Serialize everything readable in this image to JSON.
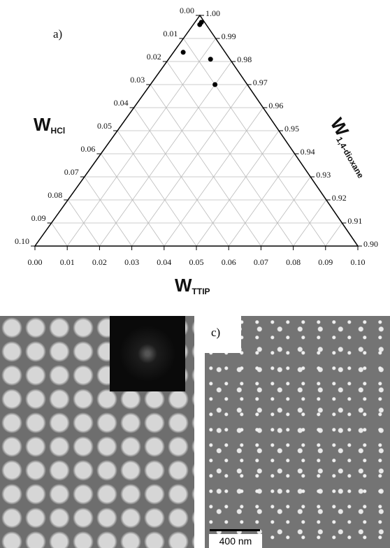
{
  "chart_data": {
    "type": "ternary",
    "panel_label": "a)",
    "axes": {
      "left": {
        "symbol": "W",
        "subscript": "HCl"
      },
      "bottom": {
        "symbol": "W",
        "subscript": "TTIP"
      },
      "right": {
        "symbol": "W",
        "subscript": "1,4-dioxane"
      }
    },
    "hcl_ticks": [
      {
        "value": 0,
        "label": "0.00"
      },
      {
        "value": 0.01,
        "label": "0.01"
      },
      {
        "value": 0.02,
        "label": "0.02"
      },
      {
        "value": 0.03,
        "label": "0.03"
      },
      {
        "value": 0.04,
        "label": "0.04"
      },
      {
        "value": 0.05,
        "label": "0.05"
      },
      {
        "value": 0.06,
        "label": "0.06"
      },
      {
        "value": 0.07,
        "label": "0.07"
      },
      {
        "value": 0.08,
        "label": "0.08"
      },
      {
        "value": 0.09,
        "label": "0.09"
      },
      {
        "value": 0.1,
        "label": "0.10"
      }
    ],
    "ttip_ticks": [
      {
        "value": 0,
        "label": "0.00"
      },
      {
        "value": 0.01,
        "label": "0.01"
      },
      {
        "value": 0.02,
        "label": "0.02"
      },
      {
        "value": 0.03,
        "label": "0.03"
      },
      {
        "value": 0.04,
        "label": "0.04"
      },
      {
        "value": 0.05,
        "label": "0.05"
      },
      {
        "value": 0.06,
        "label": "0.06"
      },
      {
        "value": 0.07,
        "label": "0.07"
      },
      {
        "value": 0.08,
        "label": "0.08"
      },
      {
        "value": 0.09,
        "label": "0.09"
      },
      {
        "value": 0.1,
        "label": "0.10"
      }
    ],
    "dioxane_ticks": [
      {
        "value": 1,
        "label": "1.00"
      },
      {
        "value": 0.99,
        "label": "0.99"
      },
      {
        "value": 0.98,
        "label": "0.98"
      },
      {
        "value": 0.97,
        "label": "0.97"
      },
      {
        "value": 0.96,
        "label": "0.96"
      },
      {
        "value": 0.95,
        "label": "0.95"
      },
      {
        "value": 0.94,
        "label": "0.94"
      },
      {
        "value": 0.93,
        "label": "0.93"
      },
      {
        "value": 0.92,
        "label": "0.92"
      },
      {
        "value": 0.91,
        "label": "0.91"
      },
      {
        "value": 0.9,
        "label": "0.90"
      }
    ],
    "points": {
      "hcl": [
        0.001,
        0.002,
        0.013,
        0.006,
        0.01
      ],
      "ttip": [
        0.002,
        0.002,
        0.003,
        0.013,
        0.02
      ],
      "color": "#000000"
    },
    "grid": true
  },
  "panel_c": {
    "label": "c)",
    "scale_bar": "400 nm"
  }
}
